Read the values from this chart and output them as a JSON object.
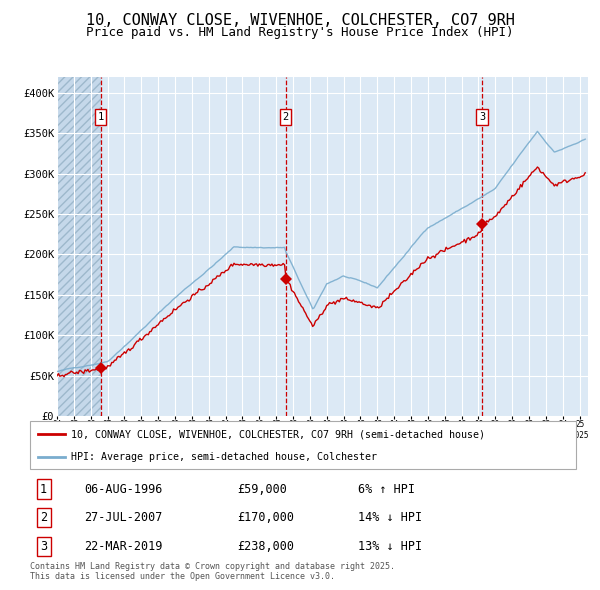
{
  "title": "10, CONWAY CLOSE, WIVENHOE, COLCHESTER, CO7 9RH",
  "subtitle": "Price paid vs. HM Land Registry's House Price Index (HPI)",
  "xlim": [
    1994.0,
    2025.5
  ],
  "ylim": [
    0,
    420000
  ],
  "yticks": [
    0,
    50000,
    100000,
    150000,
    200000,
    250000,
    300000,
    350000,
    400000
  ],
  "ytick_labels": [
    "£0",
    "£50K",
    "£100K",
    "£150K",
    "£200K",
    "£250K",
    "£300K",
    "£350K",
    "£400K"
  ],
  "xtick_years": [
    1994,
    1995,
    1996,
    1997,
    1998,
    1999,
    2000,
    2001,
    2002,
    2003,
    2004,
    2005,
    2006,
    2007,
    2008,
    2009,
    2010,
    2011,
    2012,
    2013,
    2014,
    2015,
    2016,
    2017,
    2018,
    2019,
    2020,
    2021,
    2022,
    2023,
    2024,
    2025
  ],
  "background_color": "#dce9f5",
  "grid_color": "#ffffff",
  "red_line_color": "#cc0000",
  "blue_line_color": "#7aadce",
  "vline_color": "#cc0000",
  "hatch_until": 1996.59,
  "purchases": [
    {
      "num": 1,
      "year": 1996.59,
      "price": 59000,
      "date": "06-AUG-1996",
      "hpi_pct": "6%",
      "hpi_dir": "↑"
    },
    {
      "num": 2,
      "year": 2007.57,
      "price": 170000,
      "date": "27-JUL-2007",
      "hpi_pct": "14%",
      "hpi_dir": "↓"
    },
    {
      "num": 3,
      "year": 2019.22,
      "price": 238000,
      "date": "22-MAR-2019",
      "hpi_pct": "13%",
      "hpi_dir": "↓"
    }
  ],
  "legend_label_red": "10, CONWAY CLOSE, WIVENHOE, COLCHESTER, CO7 9RH (semi-detached house)",
  "legend_label_blue": "HPI: Average price, semi-detached house, Colchester",
  "footnote": "Contains HM Land Registry data © Crown copyright and database right 2025.\nThis data is licensed under the Open Government Licence v3.0.",
  "title_fontsize": 11,
  "subtitle_fontsize": 9,
  "fig_bg": "#ffffff"
}
